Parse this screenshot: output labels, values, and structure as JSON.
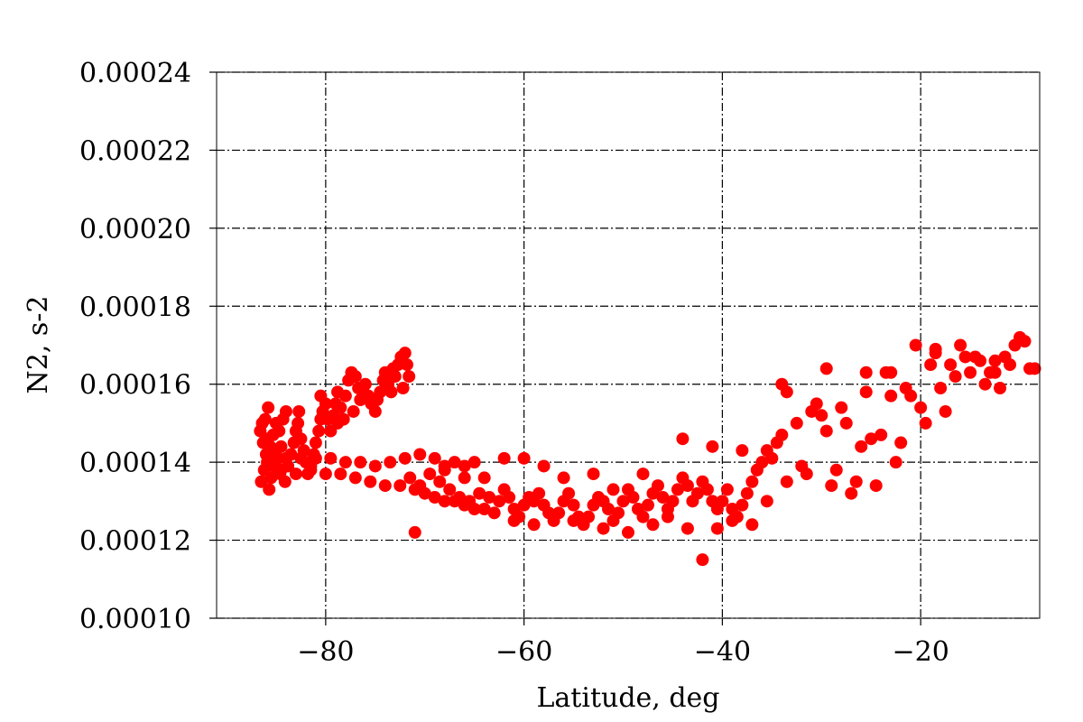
{
  "chart_data": {
    "type": "scatter",
    "title": "",
    "xlabel": "Latitude, deg",
    "ylabel": "N2, s-2",
    "xlim": [
      -91,
      -8
    ],
    "ylim": [
      0.0001,
      0.00024
    ],
    "xticks": [
      -80,
      -60,
      -40,
      -20
    ],
    "xtick_labels": [
      "−80",
      "−60",
      "−40",
      "−20"
    ],
    "yticks": [
      0.0001,
      0.00012,
      0.00014,
      0.00016,
      0.00018,
      0.0002,
      0.00022,
      0.00024
    ],
    "ytick_labels": [
      "0.00010",
      "0.00012",
      "0.00014",
      "0.00016",
      "0.00018",
      "0.00020",
      "0.00022",
      "0.00024"
    ],
    "grid": true,
    "marker_color": "#ff0000",
    "series": [
      {
        "points": [
          [
            -86.5,
            0.000135
          ],
          [
            -86.2,
            0.000138
          ],
          [
            -86.0,
            0.000142
          ],
          [
            -86.3,
            0.000145
          ],
          [
            -86.6,
            0.000148
          ],
          [
            -86.1,
            0.000151
          ],
          [
            -85.8,
            0.000154
          ],
          [
            -85.9,
            0.00014
          ],
          [
            -85.5,
            0.000136
          ],
          [
            -85.7,
            0.000133
          ],
          [
            -86.4,
            0.00015
          ],
          [
            -86.0,
            0.000146
          ],
          [
            -85.6,
            0.000144
          ],
          [
            -85.3,
            0.000147
          ],
          [
            -85.0,
            0.000143
          ],
          [
            -85.2,
            0.000139
          ],
          [
            -84.8,
            0.000141
          ],
          [
            -84.5,
            0.000144
          ],
          [
            -84.7,
            0.000148
          ],
          [
            -84.3,
            0.000151
          ],
          [
            -84.0,
            0.000153
          ],
          [
            -84.6,
            0.000137
          ],
          [
            -84.1,
            0.000135
          ],
          [
            -83.8,
            0.000139
          ],
          [
            -83.5,
            0.000142
          ],
          [
            -83.2,
            0.000145
          ],
          [
            -83.0,
            0.000148
          ],
          [
            -82.8,
            0.00015
          ],
          [
            -82.5,
            0.000146
          ],
          [
            -82.2,
            0.000143
          ],
          [
            -82.0,
            0.00014
          ],
          [
            -81.8,
            0.000137
          ],
          [
            -81.5,
            0.000139
          ],
          [
            -81.2,
            0.000142
          ],
          [
            -81.0,
            0.000145
          ],
          [
            -80.7,
            0.000148
          ],
          [
            -80.5,
            0.000151
          ],
          [
            -80.3,
            0.000153
          ],
          [
            -80.0,
            0.000155
          ],
          [
            -79.8,
            0.000151
          ],
          [
            -79.5,
            0.000148
          ],
          [
            -79.2,
            0.000152
          ],
          [
            -79.0,
            0.000155
          ],
          [
            -78.8,
            0.000158
          ],
          [
            -78.5,
            0.000154
          ],
          [
            -78.2,
            0.000151
          ],
          [
            -78.0,
            0.000157
          ],
          [
            -77.7,
            0.000161
          ],
          [
            -77.4,
            0.000163
          ],
          [
            -77.0,
            0.000162
          ],
          [
            -76.7,
            0.000159
          ],
          [
            -76.5,
            0.000156
          ],
          [
            -76.2,
            0.000158
          ],
          [
            -76.0,
            0.00016
          ],
          [
            -75.7,
            0.000157
          ],
          [
            -75.4,
            0.000155
          ],
          [
            -75.0,
            0.000153
          ],
          [
            -74.8,
            0.000156
          ],
          [
            -74.5,
            0.000158
          ],
          [
            -74.2,
            0.000161
          ],
          [
            -74.0,
            0.000163
          ],
          [
            -73.7,
            0.00016
          ],
          [
            -73.4,
            0.000158
          ],
          [
            -73.0,
            0.000162
          ],
          [
            -72.7,
            0.000165
          ],
          [
            -72.4,
            0.000167
          ],
          [
            -72.0,
            0.000168
          ],
          [
            -71.8,
            0.000165
          ],
          [
            -71.6,
            0.000162
          ],
          [
            -72.2,
            0.000159
          ],
          [
            -73.2,
            0.000164
          ],
          [
            -77.2,
            0.000153
          ],
          [
            -78.8,
            0.00015
          ],
          [
            -80.5,
            0.000157
          ],
          [
            -82.7,
            0.000153
          ],
          [
            -85.0,
            0.00015
          ],
          [
            -85.5,
            0.000142
          ],
          [
            -84.0,
            0.000141
          ],
          [
            -82.5,
            0.000141
          ],
          [
            -81.0,
            0.000141
          ],
          [
            -79.5,
            0.000141
          ],
          [
            -78.0,
            0.00014
          ],
          [
            -76.5,
            0.00014
          ],
          [
            -75.0,
            0.000139
          ],
          [
            -73.5,
            0.00014
          ],
          [
            -72.0,
            0.000141
          ],
          [
            -70.5,
            0.000142
          ],
          [
            -69.0,
            0.000141
          ],
          [
            -68.0,
            0.000139
          ],
          [
            -67.0,
            0.00014
          ],
          [
            -66.0,
            0.000139
          ],
          [
            -65.0,
            0.00014
          ],
          [
            -84.5,
            0.000138
          ],
          [
            -83.0,
            0.000137
          ],
          [
            -81.5,
            0.000138
          ],
          [
            -80.0,
            0.000137
          ],
          [
            -78.5,
            0.000137
          ],
          [
            -77.0,
            0.000136
          ],
          [
            -75.5,
            0.000135
          ],
          [
            -74.0,
            0.000134
          ],
          [
            -72.5,
            0.000134
          ],
          [
            -71.0,
            0.000133
          ],
          [
            -70.0,
            0.000132
          ],
          [
            -69.0,
            0.000131
          ],
          [
            -68.0,
            0.00013
          ],
          [
            -67.0,
            0.00013
          ],
          [
            -66.0,
            0.000129
          ],
          [
            -65.0,
            0.000128
          ],
          [
            -64.0,
            0.000128
          ],
          [
            -63.0,
            0.000127
          ],
          [
            -71.0,
            0.000122
          ],
          [
            -71.5,
            0.000136
          ],
          [
            -70.5,
            0.000134
          ],
          [
            -69.5,
            0.000137
          ],
          [
            -68.5,
            0.000135
          ],
          [
            -67.5,
            0.000133
          ],
          [
            -66.5,
            0.000131
          ],
          [
            -65.5,
            0.00013
          ],
          [
            -64.5,
            0.000132
          ],
          [
            -63.5,
            0.000131
          ],
          [
            -62.5,
            0.00013
          ],
          [
            -62.0,
            0.000133
          ],
          [
            -61.5,
            0.000131
          ],
          [
            -61.0,
            0.000128
          ],
          [
            -60.5,
            0.000126
          ],
          [
            -60.0,
            0.000129
          ],
          [
            -59.5,
            0.000131
          ],
          [
            -59.0,
            0.00013
          ],
          [
            -58.5,
            0.000132
          ],
          [
            -58.0,
            0.000129
          ],
          [
            -57.5,
            0.000127
          ],
          [
            -57.0,
            0.000125
          ],
          [
            -56.5,
            0.000127
          ],
          [
            -56.0,
            0.00013
          ],
          [
            -55.5,
            0.000132
          ],
          [
            -55.0,
            0.000129
          ],
          [
            -54.5,
            0.000126
          ],
          [
            -54.0,
            0.000124
          ],
          [
            -53.5,
            0.000126
          ],
          [
            -53.0,
            0.000129
          ],
          [
            -52.5,
            0.000131
          ],
          [
            -52.0,
            0.00013
          ],
          [
            -51.5,
            0.000128
          ],
          [
            -51.0,
            0.000125
          ],
          [
            -50.5,
            0.000127
          ],
          [
            -50.0,
            0.00013
          ],
          [
            -49.5,
            0.000133
          ],
          [
            -49.0,
            0.000131
          ],
          [
            -48.5,
            0.000128
          ],
          [
            -48.0,
            0.000126
          ],
          [
            -47.5,
            0.000129
          ],
          [
            -47.0,
            0.000132
          ],
          [
            -46.5,
            0.000134
          ],
          [
            -46.0,
            0.000131
          ],
          [
            -45.5,
            0.000128
          ],
          [
            -45.0,
            0.00013
          ],
          [
            -44.5,
            0.000133
          ],
          [
            -44.0,
            0.000136
          ],
          [
            -43.5,
            0.000134
          ],
          [
            -43.0,
            0.00013
          ],
          [
            -42.5,
            0.000132
          ],
          [
            -42.0,
            0.000135
          ],
          [
            -41.5,
            0.000133
          ],
          [
            -41.0,
            0.00013
          ],
          [
            -40.5,
            0.000128
          ],
          [
            -40.0,
            0.00013
          ],
          [
            -39.5,
            0.000133
          ],
          [
            -39.0,
            0.000128
          ],
          [
            -38.5,
            0.000126
          ],
          [
            -38.0,
            0.000129
          ],
          [
            -37.5,
            0.000132
          ],
          [
            -37.0,
            0.000135
          ],
          [
            -36.5,
            0.000138
          ],
          [
            -36.0,
            0.00014
          ],
          [
            -35.5,
            0.000143
          ],
          [
            -35.0,
            0.000141
          ],
          [
            -34.5,
            0.000145
          ],
          [
            -34.0,
            0.000147
          ],
          [
            -60.0,
            0.000141
          ],
          [
            -62.0,
            0.000141
          ],
          [
            -58.0,
            0.000139
          ],
          [
            -56.0,
            0.000136
          ],
          [
            -53.0,
            0.000137
          ],
          [
            -51.0,
            0.000133
          ],
          [
            -48.0,
            0.000137
          ],
          [
            -64.0,
            0.000136
          ],
          [
            -66.0,
            0.000136
          ],
          [
            -68.0,
            0.000138
          ],
          [
            -61.0,
            0.000125
          ],
          [
            -59.0,
            0.000124
          ],
          [
            -55.0,
            0.000125
          ],
          [
            -52.0,
            0.000123
          ],
          [
            -49.5,
            0.000122
          ],
          [
            -47.0,
            0.000124
          ],
          [
            -45.5,
            0.000126
          ],
          [
            -43.5,
            0.000123
          ],
          [
            -42.0,
            0.000115
          ],
          [
            -40.5,
            0.000123
          ],
          [
            -39.0,
            0.000125
          ],
          [
            -37.0,
            0.000124
          ],
          [
            -44.0,
            0.000146
          ],
          [
            -41.0,
            0.000144
          ],
          [
            -38.0,
            0.000143
          ],
          [
            -36.5,
            0.000138
          ],
          [
            -35.5,
            0.00013
          ],
          [
            -33.5,
            0.000135
          ],
          [
            -32.0,
            0.000139
          ],
          [
            -31.5,
            0.000137
          ],
          [
            -30.0,
            0.000152
          ],
          [
            -29.5,
            0.000148
          ],
          [
            -29.0,
            0.000134
          ],
          [
            -28.5,
            0.000138
          ],
          [
            -28.0,
            0.000154
          ],
          [
            -27.5,
            0.00015
          ],
          [
            -27.0,
            0.000132
          ],
          [
            -26.5,
            0.000135
          ],
          [
            -26.0,
            0.000144
          ],
          [
            -25.5,
            0.000158
          ],
          [
            -25.0,
            0.000146
          ],
          [
            -24.5,
            0.000134
          ],
          [
            -24.0,
            0.000147
          ],
          [
            -23.5,
            0.000163
          ],
          [
            -23.0,
            0.000157
          ],
          [
            -22.5,
            0.00014
          ],
          [
            -22.0,
            0.000145
          ],
          [
            -21.5,
            0.000159
          ],
          [
            -21.0,
            0.000157
          ],
          [
            -20.5,
            0.00017
          ],
          [
            -20.0,
            0.000154
          ],
          [
            -19.5,
            0.00015
          ],
          [
            -19.0,
            0.000165
          ],
          [
            -18.5,
            0.000169
          ],
          [
            -18.0,
            0.000159
          ],
          [
            -17.5,
            0.000153
          ],
          [
            -17.0,
            0.000165
          ],
          [
            -16.5,
            0.000162
          ],
          [
            -16.0,
            0.00017
          ],
          [
            -15.5,
            0.000167
          ],
          [
            -15.0,
            0.000163
          ],
          [
            -14.5,
            0.000167
          ],
          [
            -14.0,
            0.000166
          ],
          [
            -13.5,
            0.00016
          ],
          [
            -13.0,
            0.000163
          ],
          [
            -12.5,
            0.000166
          ],
          [
            -12.0,
            0.000159
          ],
          [
            -11.5,
            0.000167
          ],
          [
            -11.0,
            0.000165
          ],
          [
            -10.5,
            0.00017
          ],
          [
            -10.0,
            0.000172
          ],
          [
            -9.5,
            0.000171
          ],
          [
            -9.0,
            0.000164
          ],
          [
            -8.5,
            0.000164
          ],
          [
            -34.0,
            0.00016
          ],
          [
            -33.5,
            0.000158
          ],
          [
            -32.5,
            0.00015
          ],
          [
            -31.0,
            0.000153
          ],
          [
            -30.5,
            0.000155
          ],
          [
            -29.5,
            0.000164
          ],
          [
            -25.5,
            0.000163
          ],
          [
            -23.0,
            0.000163
          ],
          [
            -18.5,
            0.000168
          ],
          [
            -12.5,
            0.000163
          ]
        ]
      }
    ]
  }
}
